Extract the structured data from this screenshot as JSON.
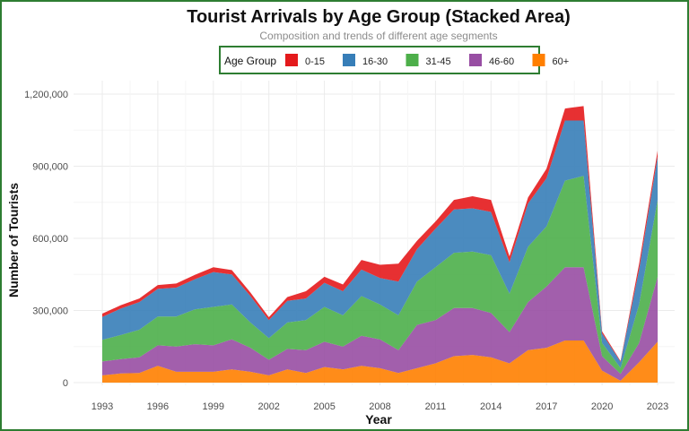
{
  "chart_data": {
    "type": "area",
    "stacked": true,
    "title": "Tourist Arrivals by Age Group (Stacked Area)",
    "subtitle": "Composition and trends of different age segments",
    "xlabel": "Year",
    "ylabel": "Number of Tourists",
    "legend_title": "Age Group",
    "legend_position": "top",
    "xlim": [
      1993,
      2023
    ],
    "ylim": [
      0,
      1200000
    ],
    "x_ticks": [
      1993,
      1996,
      1999,
      2002,
      2005,
      2008,
      2011,
      2014,
      2017,
      2020,
      2023
    ],
    "y_ticks": [
      0,
      300000,
      600000,
      900000,
      1200000
    ],
    "y_tick_labels": [
      "0",
      "300,000",
      "600,000",
      "900,000",
      "1,200,000"
    ],
    "x": [
      1993,
      1994,
      1995,
      1996,
      1997,
      1998,
      1999,
      2000,
      2001,
      2002,
      2003,
      2004,
      2005,
      2006,
      2007,
      2008,
      2009,
      2010,
      2011,
      2012,
      2013,
      2014,
      2015,
      2016,
      2017,
      2018,
      2019,
      2020,
      2021,
      2022,
      2023
    ],
    "stack_order": [
      "60+",
      "46-60",
      "31-45",
      "16-30",
      "0-15"
    ],
    "series": [
      {
        "name": "0-15",
        "color": "#e41a1c",
        "values": [
          14000,
          14000,
          15000,
          16000,
          17000,
          18000,
          20000,
          18000,
          15000,
          12000,
          16000,
          30000,
          25000,
          28000,
          40000,
          55000,
          75000,
          35000,
          30000,
          40000,
          50000,
          50000,
          25000,
          25000,
          40000,
          50000,
          60000,
          8000,
          4000,
          25000,
          25000
        ]
      },
      {
        "name": "16-30",
        "color": "#377eb8",
        "values": [
          95000,
          110000,
          115000,
          115000,
          120000,
          125000,
          145000,
          125000,
          110000,
          75000,
          90000,
          90000,
          100000,
          100000,
          110000,
          110000,
          140000,
          135000,
          160000,
          180000,
          180000,
          180000,
          130000,
          180000,
          200000,
          250000,
          230000,
          40000,
          25000,
          145000,
          180000
        ]
      },
      {
        "name": "31-45",
        "color": "#4daf4a",
        "values": [
          90000,
          100000,
          115000,
          120000,
          125000,
          145000,
          160000,
          145000,
          105000,
          90000,
          110000,
          125000,
          145000,
          130000,
          165000,
          145000,
          145000,
          180000,
          220000,
          230000,
          235000,
          240000,
          160000,
          230000,
          250000,
          360000,
          380000,
          55000,
          25000,
          160000,
          320000
        ]
      },
      {
        "name": "46-60",
        "color": "#984ea3",
        "values": [
          58000,
          60000,
          65000,
          85000,
          105000,
          115000,
          110000,
          125000,
          100000,
          65000,
          85000,
          95000,
          105000,
          95000,
          125000,
          120000,
          95000,
          180000,
          180000,
          200000,
          195000,
          185000,
          130000,
          200000,
          255000,
          305000,
          305000,
          60000,
          28000,
          80000,
          270000
        ]
      },
      {
        "name": "60+",
        "color": "#ff7f00",
        "values": [
          30000,
          38000,
          40000,
          70000,
          45000,
          45000,
          45000,
          55000,
          45000,
          30000,
          55000,
          40000,
          65000,
          55000,
          70000,
          60000,
          40000,
          60000,
          80000,
          110000,
          115000,
          105000,
          80000,
          135000,
          145000,
          175000,
          175000,
          50000,
          8000,
          85000,
          170000
        ]
      }
    ]
  }
}
